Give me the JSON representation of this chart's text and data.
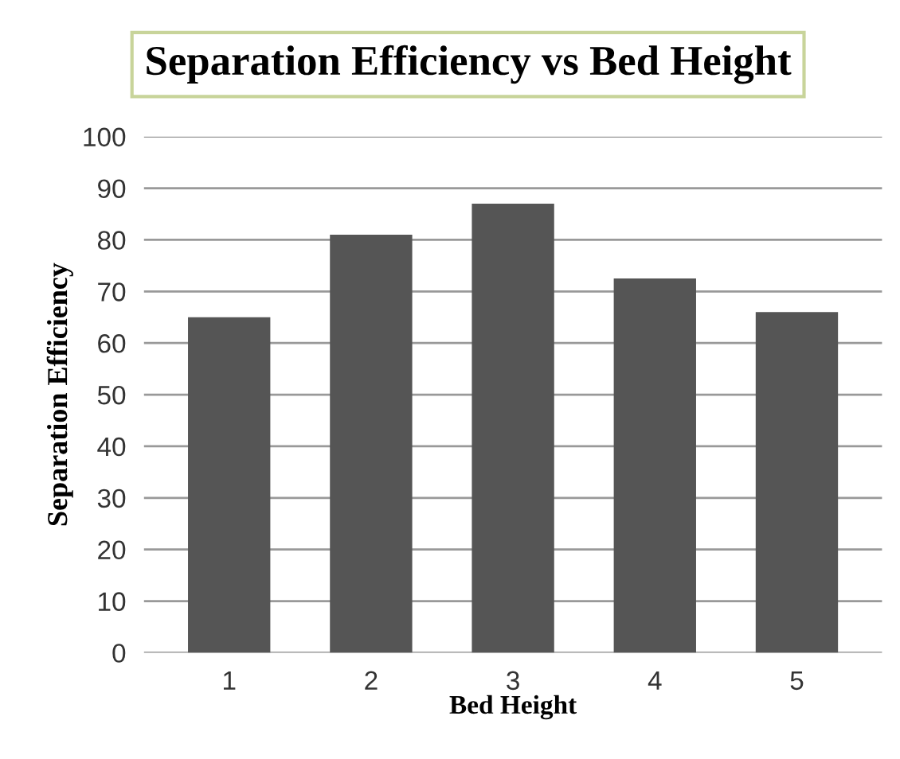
{
  "chart_data": {
    "type": "bar",
    "title": "Separation Efficiency vs Bed Height",
    "xlabel": "Bed Height",
    "ylabel": "Separation Efficiency",
    "categories": [
      "1",
      "2",
      "3",
      "4",
      "5"
    ],
    "values": [
      65,
      81,
      87,
      72.5,
      66
    ],
    "color": "#555555",
    "ylim": [
      0,
      100
    ],
    "yticks": [
      0,
      10,
      20,
      30,
      40,
      50,
      60,
      70,
      80,
      90,
      100
    ],
    "grid": "y"
  }
}
